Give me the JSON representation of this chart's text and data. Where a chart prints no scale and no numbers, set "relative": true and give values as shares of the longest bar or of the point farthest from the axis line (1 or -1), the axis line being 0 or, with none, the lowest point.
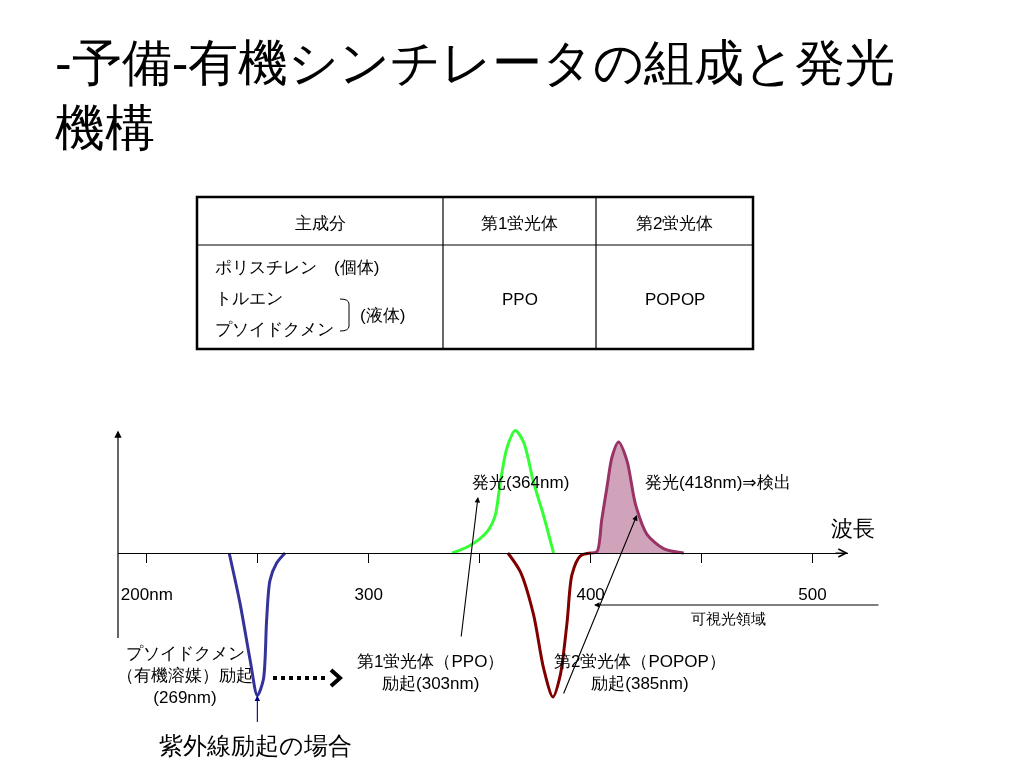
{
  "chart_data": [
    {
      "type": "other",
      "title": "-予備-有機シンチレータの組成と発光機構",
      "categories": [
        "主成分",
        "第1蛍光体",
        "第2蛍光体"
      ],
      "cell_labels": [
        [
          [
            "ポリスチレン　(個体)",
            "トルエン",
            "プソイドクメン"
          ],
          "PPO",
          "POPOP"
        ]
      ],
      "annotations": [
        "(液体)"
      ]
    },
    {
      "type": "line",
      "xlabel": "波長",
      "relative": true,
      "xlim": [
        187,
        516
      ],
      "xticks": [
        {
          "value": 200,
          "label": "200nm"
        },
        {
          "value": 250,
          "label": null
        },
        300,
        {
          "value": 350,
          "label": null
        },
        400,
        {
          "value": 450,
          "label": null
        },
        500
      ],
      "series": [
        {
          "color": "#333399",
          "x": [
            237.1,
            242.0,
            246.5,
            249.8,
            252.5,
            254.0,
            255.5,
            258.5,
            262.3
          ],
          "values": [
            0,
            -0.35,
            -0.74,
            -0.99,
            -0.88,
            -0.46,
            -0.19,
            -0.07,
            0
          ]
        },
        {
          "color": "#33ff33",
          "x": [
            337.5,
            344.2,
            350.2,
            354.0,
            357.0,
            359.3,
            362.3,
            366.0,
            369.8,
            374.3,
            378.8,
            383.3
          ],
          "values": [
            0,
            0.04,
            0.1,
            0.16,
            0.26,
            0.49,
            0.73,
            0.85,
            0.77,
            0.49,
            0.26,
            0
          ]
        },
        {
          "color": "#800000",
          "x": [
            362.7,
            368.3,
            374.3,
            378.8,
            383.0,
            386.3,
            389.4,
            391.6,
            395.4,
            400.2
          ],
          "values": [
            0,
            -0.13,
            -0.43,
            -0.8,
            -1.0,
            -0.85,
            -0.48,
            -0.15,
            -0.02,
            0
          ]
        },
        {
          "type": "area",
          "color": "#993366",
          "x": [
            400.2,
            402.9,
            405.0,
            407.4,
            409.7,
            412.6,
            416.4,
            420.2,
            425.4,
            432.9,
            442.0
          ],
          "values": [
            0,
            0.01,
            0.23,
            0.46,
            0.67,
            0.77,
            0.64,
            0.34,
            0.13,
            0.03,
            0
          ]
        }
      ],
      "annotations": [
        "発光(364nm)",
        "発光(418nm)⇒検出",
        "プソイドクメン（有機溶媒）励起(269nm)",
        "第1蛍光体（PPO）励起(303nm)",
        "第2蛍光体（POPOP）励起(385nm)",
        {
          "text": "紫外線励起の場合",
          "x": 249.8,
          "y": -0.99
        },
        "可視光領域"
      ]
    }
  ]
}
